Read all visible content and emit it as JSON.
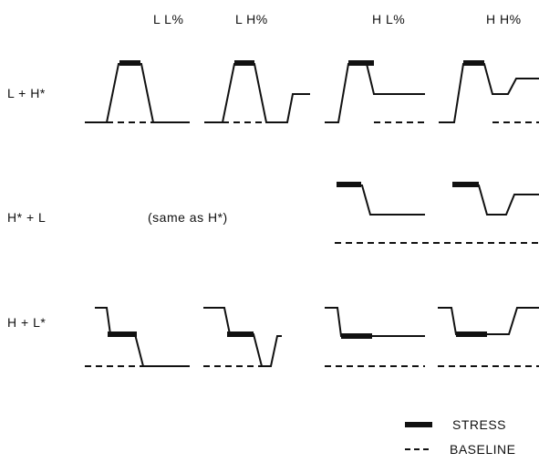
{
  "columns": [
    "L L%",
    "L H%",
    "H L%",
    "H H%"
  ],
  "rows": [
    {
      "label": "L + H*",
      "note": ""
    },
    {
      "label": "H* + L",
      "note": "(same as H*)"
    },
    {
      "label": "H + L*",
      "note": ""
    }
  ],
  "legend": {
    "stress": "STRESS",
    "baseline": "BASELINE"
  }
}
